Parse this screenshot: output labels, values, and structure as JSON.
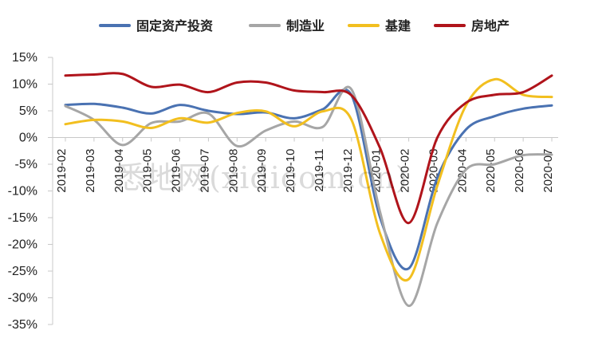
{
  "chart_data": {
    "type": "line",
    "title": "",
    "xlabel": "",
    "ylabel": "",
    "categories": [
      "2019-02",
      "2019-03",
      "2019-04",
      "2019-05",
      "2019-06",
      "2019-07",
      "2019-08",
      "2019-09",
      "2019-10",
      "2019-11",
      "2019-12",
      "2020-01",
      "2020-02",
      "2020-03",
      "2020-04",
      "2020-05",
      "2020-06",
      "2020-07"
    ],
    "ylim": [
      -35,
      15
    ],
    "yticks": [
      15,
      10,
      5,
      0,
      -5,
      -10,
      -15,
      -20,
      -25,
      -30,
      -35
    ],
    "ytick_labels": [
      "15%",
      "10%",
      "5%",
      "0%",
      "-5%",
      "-10%",
      "-15%",
      "-20%",
      "-25%",
      "-30%",
      "-35%"
    ],
    "legend_position": "top",
    "grid": false,
    "series": [
      {
        "name": "固定资产投资",
        "color": "#4a72b2",
        "values": [
          6.1,
          6.3,
          5.6,
          4.5,
          6.1,
          5.0,
          4.4,
          4.7,
          3.6,
          5.3,
          7.9,
          -15.0,
          -24.5,
          -7.5,
          1.5,
          4.0,
          5.4,
          6.0
        ]
      },
      {
        "name": "制造业",
        "color": "#a6a6a6",
        "values": [
          5.9,
          3.3,
          -1.4,
          2.7,
          3.0,
          4.5,
          -1.6,
          1.3,
          3.0,
          2.0,
          9.0,
          -14.0,
          -31.5,
          -16.0,
          -6.0,
          -5.0,
          -3.3,
          -3.2
        ]
      },
      {
        "name": "基建",
        "color": "#f2bf1f",
        "values": [
          2.5,
          3.3,
          3.0,
          1.8,
          3.6,
          2.8,
          4.6,
          4.9,
          2.1,
          4.9,
          3.3,
          -18.0,
          -26.5,
          -9.0,
          6.0,
          10.9,
          8.0,
          7.6
        ]
      },
      {
        "name": "房地产",
        "color": "#b0141b",
        "values": [
          11.6,
          11.8,
          11.9,
          9.5,
          9.9,
          8.5,
          10.3,
          10.3,
          8.8,
          8.5,
          7.9,
          -2.0,
          -16.0,
          0.0,
          6.5,
          8.0,
          8.5,
          11.6
        ]
      }
    ],
    "annotations": [
      "悉地网(xidicom.cn)"
    ]
  }
}
